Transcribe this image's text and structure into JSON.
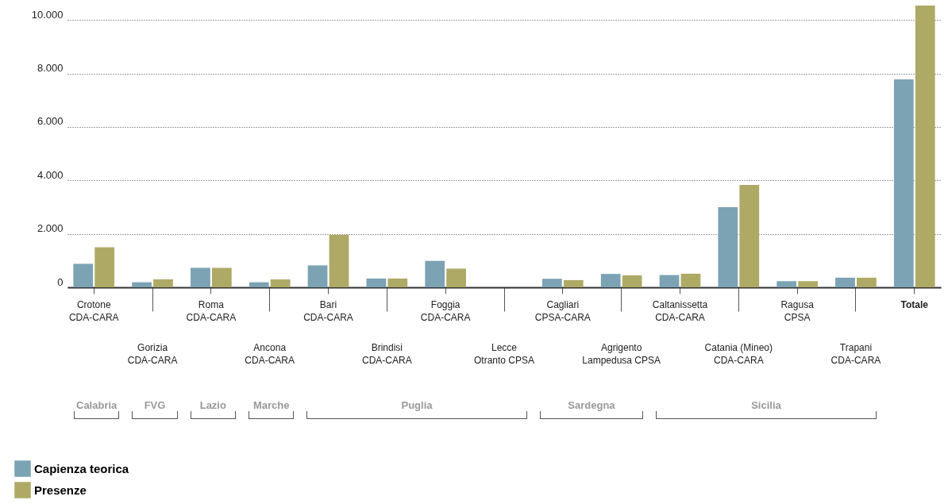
{
  "chart_data": {
    "type": "bar",
    "categories": [
      "Crotone\nCDA-CARA",
      "Gorizia\nCDA-CARA",
      "Roma\nCDA-CARA",
      "Ancona\nCDA-CARA",
      "Bari\nCDA-CARA",
      "Brindisi\nCDA-CARA",
      "Foggia\nCDA-CARA",
      "Lecce\nOtranto CPSA",
      "Cagliari\nCPSA-CARA",
      "Agrigento\nLampedusa CPSA",
      "Caltanissetta\nCDA-CARA",
      "Catania (Mineo)\nCDA-CARA",
      "Ragusa\nCPSA",
      "Trapani\nCDA-CARA",
      "Totale"
    ],
    "series": [
      {
        "name": "Capienza teorica",
        "color": "#7ba3b3",
        "values": [
          880,
          190,
          730,
          190,
          820,
          330,
          990,
          null,
          320,
          500,
          460,
          3000,
          230,
          360,
          7780
        ]
      },
      {
        "name": "Presenze",
        "color": "#aeaa66",
        "values": [
          1500,
          300,
          730,
          300,
          1960,
          330,
          700,
          null,
          270,
          450,
          510,
          3830,
          230,
          360,
          10540
        ]
      }
    ],
    "ylim": [
      0,
      10600
    ],
    "yticks": [
      {
        "value": 0,
        "label": "0"
      },
      {
        "value": 2000,
        "label": "2.000"
      },
      {
        "value": 4000,
        "label": "4.000"
      },
      {
        "value": 6000,
        "label": "6.000"
      },
      {
        "value": 8000,
        "label": "8.000"
      },
      {
        "value": 10000,
        "label": "10.000"
      }
    ],
    "grid": "y",
    "legend": "bottom",
    "annotations": [
      "Calabria",
      "FVG",
      "Lazio",
      "Marche",
      "Puglia",
      "Sardegna",
      "Sicilia"
    ]
  }
}
